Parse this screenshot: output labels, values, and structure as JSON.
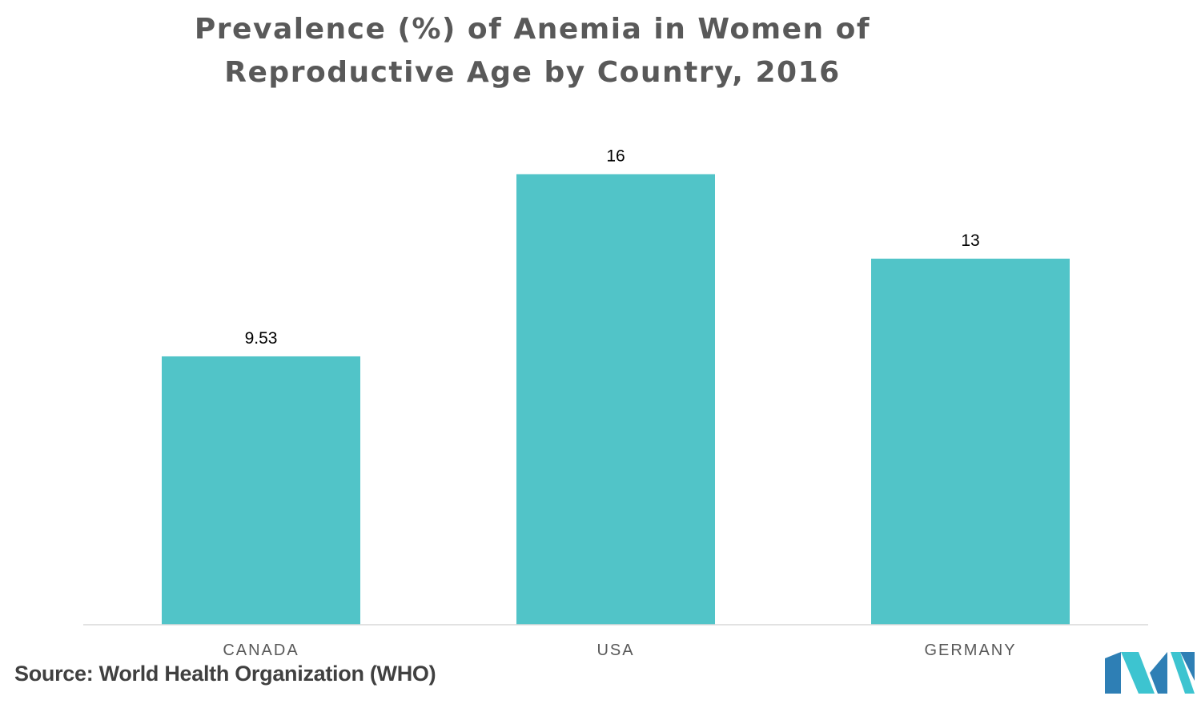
{
  "chart_data": {
    "type": "bar",
    "title": "Prevalence (%) of Anemia in Women of Reproductive Age by Country, 2016",
    "categories": [
      "CANADA",
      "USA",
      "GERMANY"
    ],
    "values": [
      9.53,
      16,
      13
    ],
    "value_labels": [
      "9.53",
      "16",
      "13"
    ],
    "xlabel": "",
    "ylabel": "",
    "ylim": [
      0,
      19
    ],
    "grid": false,
    "legend": "none",
    "bar_color": "#51C4C8"
  },
  "source": "Source: World Health Organization (WHO)",
  "logo": {
    "icon": "mordor-logo-icon",
    "colors": [
      "#2E7FB5",
      "#3DC4D0"
    ]
  }
}
